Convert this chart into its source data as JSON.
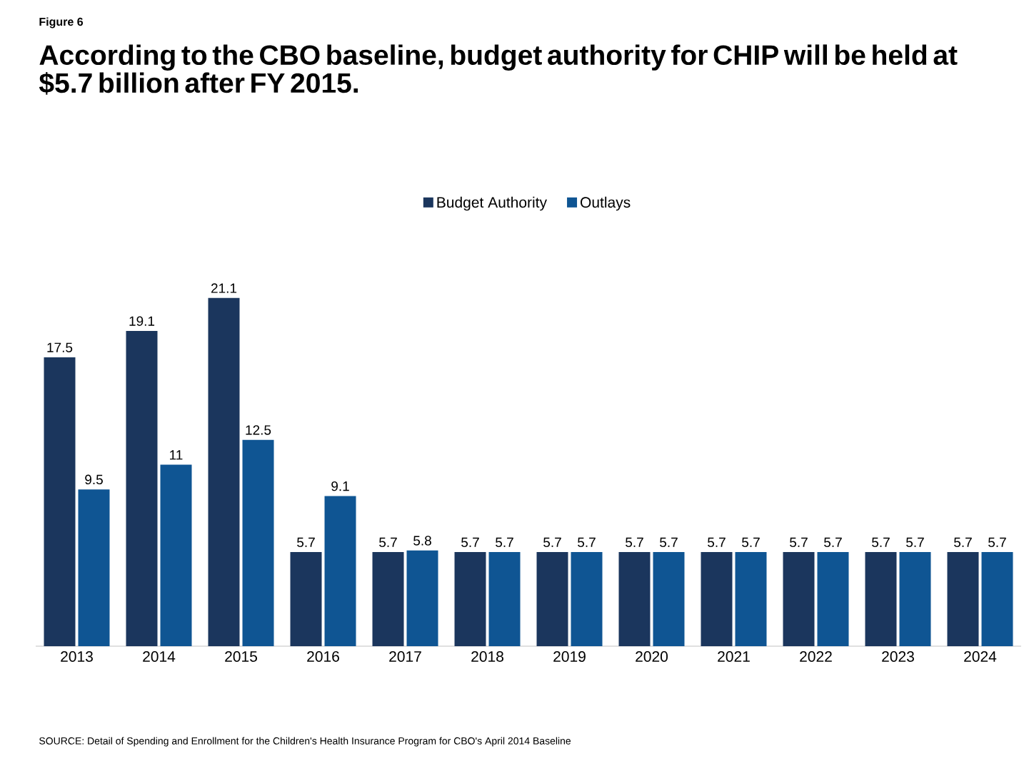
{
  "chart_data": {
    "type": "bar",
    "subtitle": "Figure 6",
    "title": "According to the CBO baseline, budget authority for CHIP will be held at $5.7 billion after FY 2015.",
    "categories": [
      "2013",
      "2014",
      "2015",
      "2016",
      "2017",
      "2018",
      "2019",
      "2020",
      "2021",
      "2022",
      "2023",
      "2024"
    ],
    "series": [
      {
        "name": "Budget Authority",
        "color": "#1b365d",
        "values": [
          17.5,
          19.1,
          21.1,
          5.7,
          5.7,
          5.7,
          5.7,
          5.7,
          5.7,
          5.7,
          5.7,
          5.7
        ]
      },
      {
        "name": "Outlays",
        "color": "#0f5593",
        "values": [
          9.5,
          11,
          12.5,
          9.1,
          5.8,
          5.7,
          5.7,
          5.7,
          5.7,
          5.7,
          5.7,
          5.7
        ]
      }
    ],
    "data_labels": true,
    "legend": "top",
    "annotations": [
      "SOURCE:  Detail of Spending and Enrollment for the Children's Health Insurance Program for CBO's April 2014 Baseline"
    ]
  }
}
